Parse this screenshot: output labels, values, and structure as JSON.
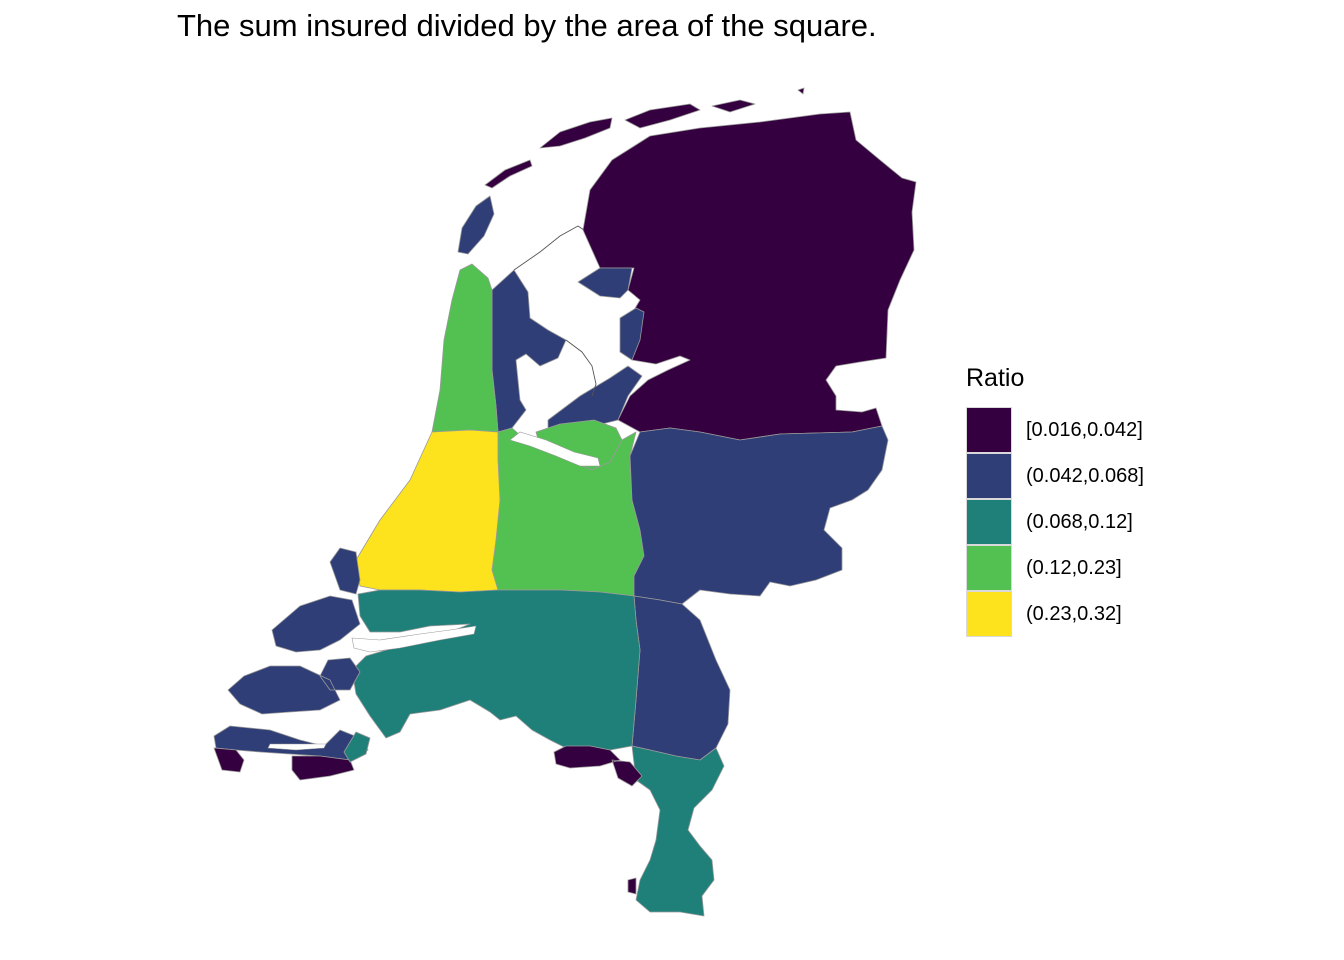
{
  "title": "The sum insured divided by the area of the square.",
  "legend": {
    "title": "Ratio",
    "classes": [
      {
        "label": "[0.016,0.042]",
        "color": "#35003f"
      },
      {
        "label": "(0.042,0.068]",
        "color": "#2f3e76"
      },
      {
        "label": "(0.068,0.12]",
        "color": "#1f7f79"
      },
      {
        "label": "(0.12,0.23]",
        "color": "#52c152"
      },
      {
        "label": "(0.23,0.32]",
        "color": "#fde21e"
      }
    ]
  },
  "colors": {
    "border": "#9a9a9a",
    "background": "#ffffff"
  }
}
